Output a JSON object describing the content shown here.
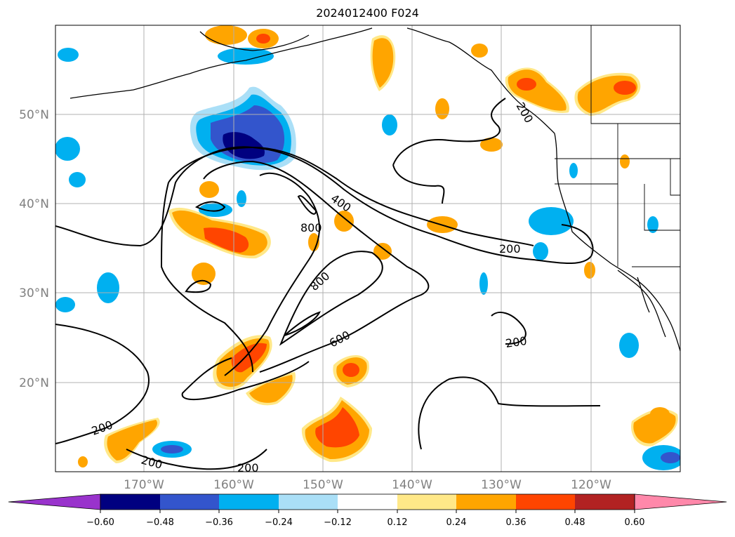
{
  "title": "2024012400 F024",
  "lat_labels": [
    "50°N",
    "40°N",
    "30°N",
    "20°N"
  ],
  "lon_labels": [
    "170°W",
    "160°W",
    "150°W",
    "140°W",
    "130°W",
    "120°W"
  ],
  "contour_labels": [
    "400",
    "800",
    "800",
    "600",
    "200",
    "200",
    "200",
    "200",
    "200",
    "200"
  ],
  "colorbar": {
    "tick_labels": [
      "−0.60",
      "−0.48",
      "−0.36",
      "−0.24",
      "−0.12",
      "0.12",
      "0.24",
      "0.36",
      "0.48",
      "0.60"
    ],
    "colors": [
      "#9933cc",
      "#000080",
      "#3355cc",
      "#00b0f0",
      "#aadff7",
      "#ffffff",
      "#ffe888",
      "#ffa500",
      "#ff4500",
      "#b22222",
      "#ff88aa"
    ]
  },
  "colors": {
    "frame": "#000000",
    "grid": "#b0b0b0",
    "contour": "#000000",
    "coastline": "#000000",
    "axis_label": "#808080"
  }
}
